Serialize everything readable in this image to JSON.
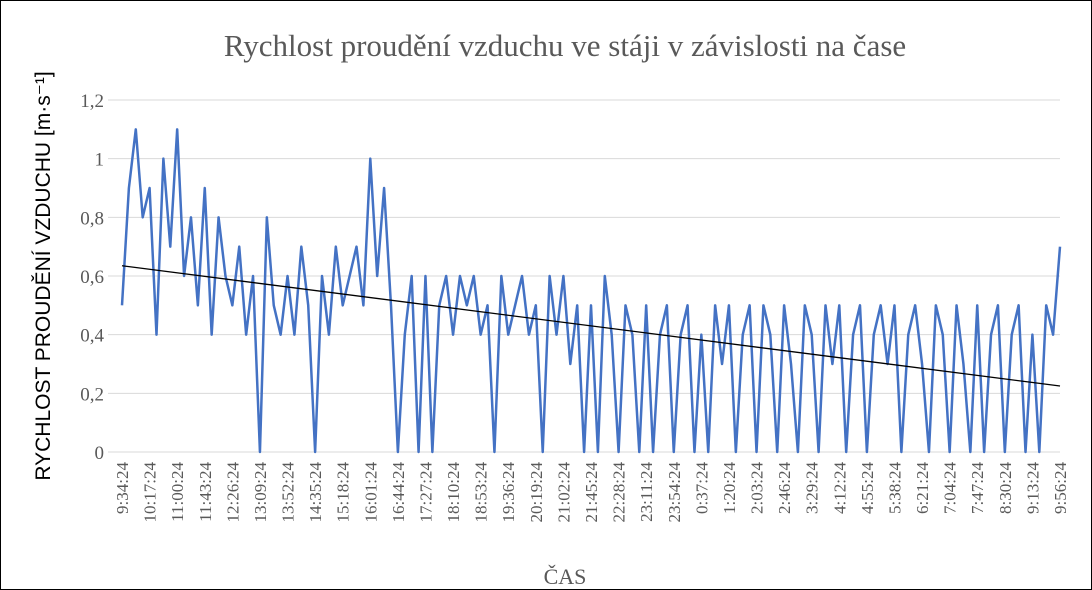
{
  "chart_data": {
    "type": "line",
    "title": "Rychlost proudění vzduchu ve stáji v závislosti na čase",
    "x_label": "ČAS",
    "y_label": "RYCHLOST PROUDĚNÍ VZDUCHU [m·s⁻¹]",
    "categories": [
      "9:34:24",
      null,
      null,
      null,
      "10:17:24",
      null,
      null,
      null,
      "11:00:24",
      null,
      null,
      null,
      "11:43:24",
      null,
      null,
      null,
      "12:26:24",
      null,
      null,
      null,
      "13:09:24",
      null,
      null,
      null,
      "13:52:24",
      null,
      null,
      null,
      "14:35:24",
      null,
      null,
      null,
      "15:18:24",
      null,
      null,
      null,
      "16:01:24",
      null,
      null,
      null,
      "16:44:24",
      null,
      null,
      null,
      "17:27:24",
      null,
      null,
      null,
      "18:10:24",
      null,
      null,
      null,
      "18:53:24",
      null,
      null,
      null,
      "19:36:24",
      null,
      null,
      null,
      "20:19:24",
      null,
      null,
      null,
      "21:02:24",
      null,
      null,
      null,
      "21:45:24",
      null,
      null,
      null,
      "22:28:24",
      null,
      null,
      null,
      "23:11:24",
      null,
      null,
      null,
      "23:54:24",
      null,
      null,
      null,
      "0:37:24",
      null,
      null,
      null,
      "1:20:24",
      null,
      null,
      null,
      "2:03:24",
      null,
      null,
      null,
      "2:46:24",
      null,
      null,
      null,
      "3:29:24",
      null,
      null,
      null,
      "4:12:24",
      null,
      null,
      null,
      "4:55:24",
      null,
      null,
      null,
      "5:38:24",
      null,
      null,
      null,
      "6:21:24",
      null,
      null,
      null,
      "7:04:24",
      null,
      null,
      null,
      "7:47:24",
      null,
      null,
      null,
      "8:30:24",
      null,
      null,
      null,
      "9:13:24",
      null,
      null,
      null,
      "9:56:24"
    ],
    "series": [
      {
        "color": "#4472c4",
        "values": [
          0.5,
          0.9,
          1.1,
          0.8,
          0.9,
          0.4,
          1.0,
          0.7,
          1.1,
          0.6,
          0.8,
          0.5,
          0.9,
          0.4,
          0.8,
          0.6,
          0.5,
          0.7,
          0.4,
          0.6,
          0,
          0.8,
          0.5,
          0.4,
          0.6,
          0.4,
          0.7,
          0.5,
          0,
          0.6,
          0.4,
          0.7,
          0.5,
          0.6,
          0.7,
          0.5,
          1.0,
          0.6,
          0.9,
          0.5,
          0,
          0.4,
          0.6,
          0,
          0.6,
          0,
          0.5,
          0.6,
          0.4,
          0.6,
          0.5,
          0.6,
          0.4,
          0.5,
          0,
          0.6,
          0.4,
          0.5,
          0.6,
          0.4,
          0.5,
          0,
          0.6,
          0.4,
          0.6,
          0.3,
          0.5,
          0,
          0.5,
          0,
          0.6,
          0.4,
          0,
          0.5,
          0.4,
          0,
          0.5,
          0,
          0.4,
          0.5,
          0,
          0.4,
          0.5,
          0,
          0.4,
          0,
          0.5,
          0.3,
          0.5,
          0,
          0.4,
          0.5,
          0,
          0.5,
          0.4,
          0,
          0.5,
          0.3,
          0,
          0.5,
          0.4,
          0,
          0.5,
          0.3,
          0.5,
          0,
          0.4,
          0.5,
          0,
          0.4,
          0.5,
          0.3,
          0.5,
          0,
          0.4,
          0.5,
          0.3,
          0,
          0.5,
          0.4,
          0,
          0.5,
          0.3,
          0,
          0.5,
          0,
          0.4,
          0.5,
          0,
          0.4,
          0.5,
          0,
          0.4,
          0,
          0.5,
          0.4,
          0.7
        ]
      }
    ],
    "trendline": {
      "color": "#000000",
      "values": [
        0.635,
        0.225
      ]
    },
    "ylim": [
      0,
      1.2
    ],
    "yticks": [
      0,
      {
        "value": 0.2,
        "label": "0,2"
      },
      {
        "value": 0.4,
        "label": "0,4"
      },
      {
        "value": 0.6,
        "label": "0,6"
      },
      {
        "value": 0.8,
        "label": "0,8"
      },
      1,
      {
        "value": 1.2,
        "label": "1,2"
      }
    ],
    "grid": true
  }
}
